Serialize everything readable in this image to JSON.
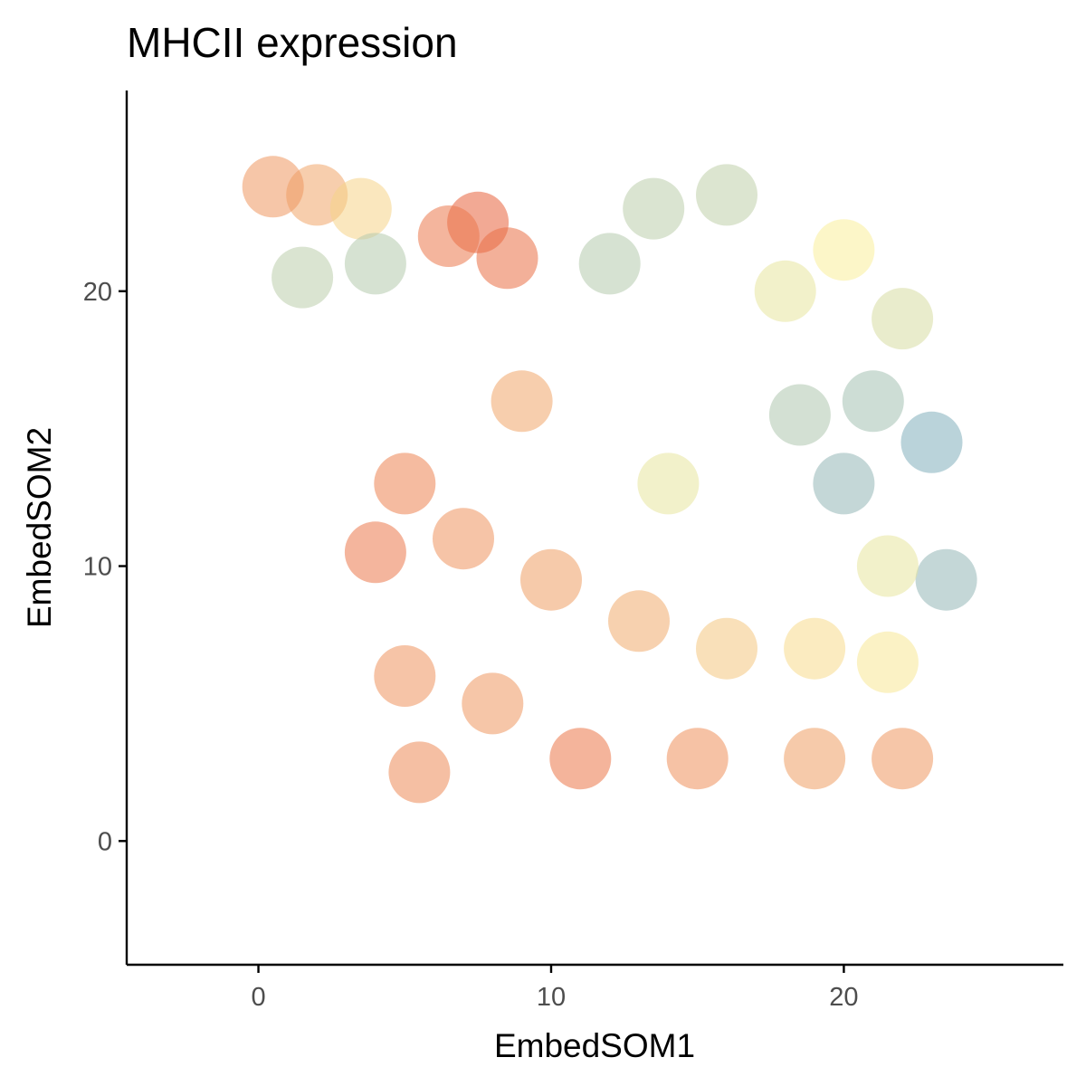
{
  "chart_data": {
    "type": "scatter",
    "title": "MHCII expression",
    "xlabel": "EmbedSOM1",
    "ylabel": "EmbedSOM2",
    "xlim": [
      -4.5,
      27.5
    ],
    "ylim": [
      -4.5,
      27.3
    ],
    "x_ticks": [
      0,
      10,
      20
    ],
    "y_ticks": [
      0,
      10,
      20
    ],
    "grid": false,
    "legend": "none",
    "color_scale": {
      "low": "#4f93c9",
      "mid": "#f9ee9a",
      "high": "#e5472a"
    },
    "series": [
      {
        "values": [
          {
            "x": 2.0,
            "y": 23.5,
            "level": 0.72
          },
          {
            "x": 0.5,
            "y": 23.8,
            "level": 0.76
          },
          {
            "x": 3.5,
            "y": 23.0,
            "level": 0.58
          },
          {
            "x": 1.5,
            "y": 20.5,
            "level": 0.32
          },
          {
            "x": 4.0,
            "y": 21.0,
            "level": 0.3
          },
          {
            "x": 7.5,
            "y": 22.5,
            "level": 0.92
          },
          {
            "x": 8.5,
            "y": 21.2,
            "level": 0.88
          },
          {
            "x": 6.5,
            "y": 22.0,
            "level": 0.85
          },
          {
            "x": 13.5,
            "y": 23.0,
            "level": 0.32
          },
          {
            "x": 12.0,
            "y": 21.0,
            "level": 0.3
          },
          {
            "x": 16.0,
            "y": 23.5,
            "level": 0.33
          },
          {
            "x": 20.0,
            "y": 21.5,
            "level": 0.5
          },
          {
            "x": 18.0,
            "y": 20.0,
            "level": 0.45
          },
          {
            "x": 22.0,
            "y": 19.0,
            "level": 0.4
          },
          {
            "x": 21.0,
            "y": 16.0,
            "level": 0.25
          },
          {
            "x": 23.0,
            "y": 14.5,
            "level": 0.15
          },
          {
            "x": 18.5,
            "y": 15.5,
            "level": 0.28
          },
          {
            "x": 20.0,
            "y": 13.0,
            "level": 0.2
          },
          {
            "x": 23.5,
            "y": 9.5,
            "level": 0.2
          },
          {
            "x": 21.5,
            "y": 10.0,
            "level": 0.45
          },
          {
            "x": 14.0,
            "y": 13.0,
            "level": 0.45
          },
          {
            "x": 5.0,
            "y": 13.0,
            "level": 0.82
          },
          {
            "x": 4.0,
            "y": 10.5,
            "level": 0.85
          },
          {
            "x": 7.0,
            "y": 11.0,
            "level": 0.77
          },
          {
            "x": 10.0,
            "y": 9.5,
            "level": 0.74
          },
          {
            "x": 13.0,
            "y": 8.0,
            "level": 0.7
          },
          {
            "x": 16.0,
            "y": 7.0,
            "level": 0.62
          },
          {
            "x": 19.0,
            "y": 7.0,
            "level": 0.56
          },
          {
            "x": 21.5,
            "y": 6.5,
            "level": 0.52
          },
          {
            "x": 5.0,
            "y": 6.0,
            "level": 0.77
          },
          {
            "x": 8.0,
            "y": 5.0,
            "level": 0.76
          },
          {
            "x": 11.0,
            "y": 3.0,
            "level": 0.86
          },
          {
            "x": 15.0,
            "y": 3.0,
            "level": 0.78
          },
          {
            "x": 19.0,
            "y": 3.0,
            "level": 0.74
          },
          {
            "x": 22.0,
            "y": 3.0,
            "level": 0.76
          },
          {
            "x": 5.5,
            "y": 2.5,
            "level": 0.8
          },
          {
            "x": 9.0,
            "y": 16.0,
            "level": 0.72
          }
        ]
      }
    ]
  }
}
